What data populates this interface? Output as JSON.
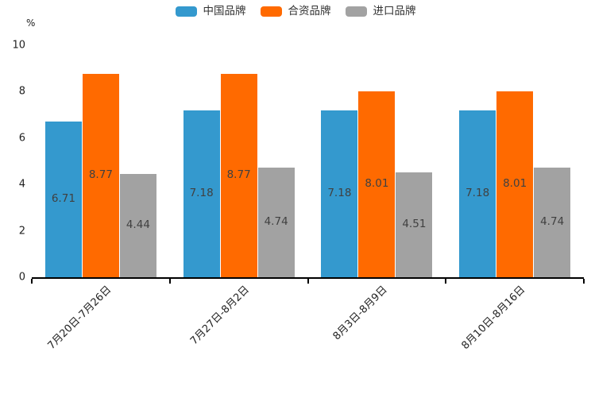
{
  "chart_data": {
    "type": "bar",
    "title": "",
    "unit_label": "%",
    "categories": [
      "7月20日-7月26日",
      "7月27日-8月2日",
      "8月3日-8月9日",
      "8月10日-8月16日"
    ],
    "series": [
      {
        "name": "中国品牌",
        "color": "#3499CE",
        "values": [
          6.71,
          7.18,
          7.18,
          7.18
        ]
      },
      {
        "name": "合资品牌",
        "color": "#FF6A00",
        "values": [
          8.77,
          8.77,
          8.01,
          8.01
        ]
      },
      {
        "name": "进口品牌",
        "color": "#A2A2A2",
        "values": [
          4.44,
          4.74,
          4.51,
          4.74
        ]
      }
    ],
    "value_labels": [
      [
        "6.71",
        "8.77",
        "4.44"
      ],
      [
        "7.18",
        "8.77",
        "4.74"
      ],
      [
        "7.18",
        "8.01",
        "4.51"
      ],
      [
        "7.18",
        "8.01",
        "4.74"
      ]
    ],
    "ylim": [
      0,
      10
    ],
    "yticks": [
      "0",
      "2",
      "4",
      "6",
      "8",
      "10"
    ],
    "grid": false,
    "legend_position": "top",
    "colors": {
      "axis_line": "#000000",
      "axis_text": "#222222",
      "bar_label_text": "#404040",
      "legend_text": "#333333",
      "background": "#ffffff"
    }
  }
}
